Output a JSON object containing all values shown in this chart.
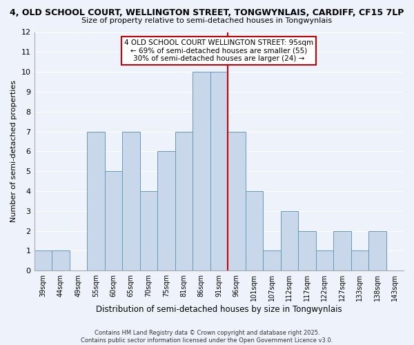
{
  "title_line1": "4, OLD SCHOOL COURT, WELLINGTON STREET, TONGWYNLAIS, CARDIFF, CF15 7LP",
  "title_line2": "Size of property relative to semi-detached houses in Tongwynlais",
  "xlabel": "Distribution of semi-detached houses by size in Tongwynlais",
  "ylabel": "Number of semi-detached properties",
  "bar_labels": [
    "39sqm",
    "44sqm",
    "49sqm",
    "55sqm",
    "60sqm",
    "65sqm",
    "70sqm",
    "75sqm",
    "81sqm",
    "86sqm",
    "91sqm",
    "96sqm",
    "101sqm",
    "107sqm",
    "112sqm",
    "117sqm",
    "122sqm",
    "127sqm",
    "133sqm",
    "138sqm",
    "143sqm"
  ],
  "bar_values": [
    1,
    1,
    0,
    7,
    5,
    7,
    4,
    6,
    7,
    10,
    10,
    7,
    4,
    1,
    3,
    2,
    1,
    2,
    1,
    2,
    0
  ],
  "vline_index": 11,
  "bar_color": "#c8d8ea",
  "bar_edgecolor": "#6699bb",
  "vline_color": "#cc0000",
  "annotation_title": "4 OLD SCHOOL COURT WELLINGTON STREET: 95sqm",
  "annotation_line2": "← 69% of semi-detached houses are smaller (55)",
  "annotation_line3": "30% of semi-detached houses are larger (24) →",
  "ylim": [
    0,
    12
  ],
  "yticks": [
    0,
    1,
    2,
    3,
    4,
    5,
    6,
    7,
    8,
    9,
    10,
    11,
    12
  ],
  "background_color": "#eef2fb",
  "grid_color": "#ffffff",
  "footer_line1": "Contains HM Land Registry data © Crown copyright and database right 2025.",
  "footer_line2": "Contains public sector information licensed under the Open Government Licence v3.0."
}
